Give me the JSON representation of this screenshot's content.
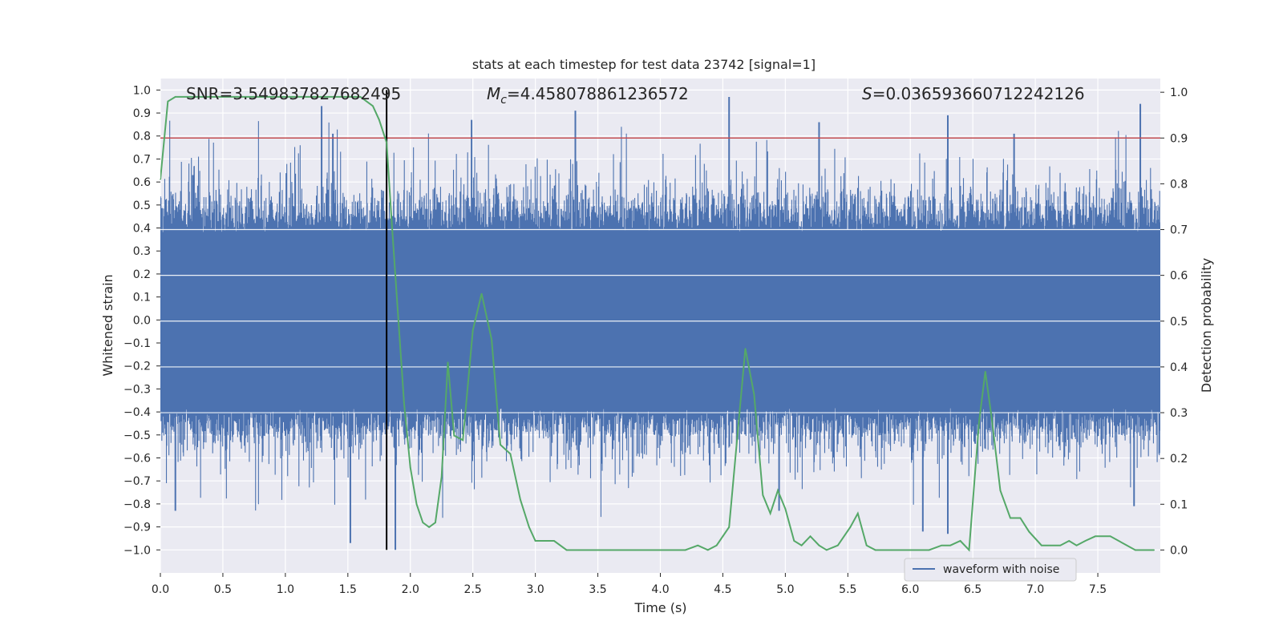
{
  "chart_data": {
    "type": "line",
    "title": "stats at each timestep for test data 23742 [signal=1]",
    "xlabel": "Time (s)",
    "ylabel_left": "Whitened strain",
    "ylabel_right": "Detection probability",
    "xlim": [
      0.0,
      8.0
    ],
    "ylim_left": [
      -1.1,
      1.05
    ],
    "ylim_right": [
      -0.05,
      1.03
    ],
    "x_ticks": [
      "0.0",
      "0.5",
      "1.0",
      "1.5",
      "2.0",
      "2.5",
      "3.0",
      "3.5",
      "4.0",
      "4.5",
      "5.0",
      "5.5",
      "6.0",
      "6.5",
      "7.0",
      "7.5"
    ],
    "y_left_ticks": [
      "1.0",
      "0.9",
      "0.8",
      "0.7",
      "0.6",
      "0.5",
      "0.4",
      "0.3",
      "0.2",
      "0.1",
      "0.0",
      "−0.1",
      "−0.2",
      "−0.3",
      "−0.4",
      "−0.5",
      "−0.6",
      "−0.7",
      "−0.8",
      "−0.9",
      "−1.0"
    ],
    "y_right_ticks": [
      "1.0",
      "0.9",
      "0.8",
      "0.7",
      "0.6",
      "0.5",
      "0.4",
      "0.3",
      "0.2",
      "0.1",
      "0.0"
    ],
    "grid": true,
    "annotations": {
      "snr": "SNR=3.549837827682495",
      "mc_symbol": "M",
      "mc_sub": "c",
      "mc_value": "=4.458078861236572",
      "s_symbol": "S",
      "s_value": "=0.036593660712242126"
    },
    "legend": {
      "placement": "bottom-right",
      "entries": [
        "waveform with noise"
      ]
    },
    "threshold_line": {
      "axis": "right",
      "value": 0.9,
      "color": "#c44e52"
    },
    "vertical_line": {
      "x": 1.81,
      "color": "#000000"
    },
    "series": [
      {
        "name": "waveform with noise",
        "axis": "left",
        "color": "#4c72b0",
        "rendering": "dense noise band",
        "typical_range": [
          -0.4,
          0.4
        ],
        "peaks_positive": [
          [
            0.26,
            0.63
          ],
          [
            1.29,
            0.93
          ],
          [
            1.38,
            0.81
          ],
          [
            2.49,
            0.87
          ],
          [
            3.32,
            0.91
          ],
          [
            4.55,
            0.97
          ],
          [
            5.27,
            0.86
          ],
          [
            6.3,
            0.89
          ],
          [
            6.83,
            0.81
          ],
          [
            7.84,
            0.94
          ]
        ],
        "peaks_negative": [
          [
            0.12,
            -0.83
          ],
          [
            1.52,
            -0.97
          ],
          [
            1.88,
            -1.0
          ],
          [
            4.95,
            -0.83
          ],
          [
            6.1,
            -0.92
          ],
          [
            6.3,
            -0.93
          ],
          [
            7.79,
            -0.81
          ]
        ]
      },
      {
        "name": "",
        "axis": "right",
        "color": "#55a868",
        "x": [
          0.0,
          0.06,
          0.12,
          0.2,
          0.3,
          0.4,
          0.5,
          0.6,
          0.7,
          0.8,
          0.9,
          1.0,
          1.1,
          1.2,
          1.3,
          1.4,
          1.5,
          1.6,
          1.65,
          1.7,
          1.75,
          1.81,
          1.85,
          1.9,
          1.95,
          2.0,
          2.05,
          2.1,
          2.15,
          2.2,
          2.25,
          2.3,
          2.35,
          2.42,
          2.5,
          2.57,
          2.65,
          2.72,
          2.8,
          2.88,
          2.95,
          3.0,
          3.07,
          3.15,
          3.25,
          3.35,
          3.45,
          3.6,
          3.8,
          4.0,
          4.2,
          4.3,
          4.38,
          4.45,
          4.55,
          4.62,
          4.68,
          4.75,
          4.82,
          4.88,
          4.94,
          5.0,
          5.07,
          5.13,
          5.2,
          5.27,
          5.33,
          5.42,
          5.52,
          5.58,
          5.65,
          5.72,
          5.85,
          6.0,
          6.15,
          6.25,
          6.32,
          6.4,
          6.47,
          6.55,
          6.6,
          6.65,
          6.72,
          6.8,
          6.88,
          6.95,
          7.05,
          7.12,
          7.2,
          7.27,
          7.33,
          7.4,
          7.48,
          7.6,
          7.8,
          7.95
        ],
        "y": [
          0.81,
          0.98,
          0.99,
          0.99,
          0.99,
          0.99,
          0.99,
          0.99,
          0.99,
          0.99,
          0.99,
          0.99,
          0.99,
          0.99,
          0.99,
          0.99,
          0.99,
          0.99,
          0.98,
          0.97,
          0.94,
          0.89,
          0.72,
          0.52,
          0.32,
          0.18,
          0.1,
          0.06,
          0.05,
          0.06,
          0.16,
          0.41,
          0.25,
          0.24,
          0.48,
          0.56,
          0.46,
          0.23,
          0.21,
          0.11,
          0.05,
          0.02,
          0.02,
          0.02,
          0.0,
          0.0,
          0.0,
          0.0,
          0.0,
          0.0,
          0.0,
          0.01,
          0.0,
          0.01,
          0.05,
          0.26,
          0.44,
          0.34,
          0.12,
          0.08,
          0.13,
          0.09,
          0.02,
          0.01,
          0.03,
          0.01,
          0.0,
          0.01,
          0.05,
          0.08,
          0.01,
          0.0,
          0.0,
          0.0,
          0.0,
          0.01,
          0.01,
          0.02,
          0.0,
          0.28,
          0.39,
          0.29,
          0.13,
          0.07,
          0.07,
          0.04,
          0.01,
          0.01,
          0.01,
          0.02,
          0.01,
          0.02,
          0.03,
          0.03,
          0.0,
          0.0
        ]
      }
    ]
  }
}
